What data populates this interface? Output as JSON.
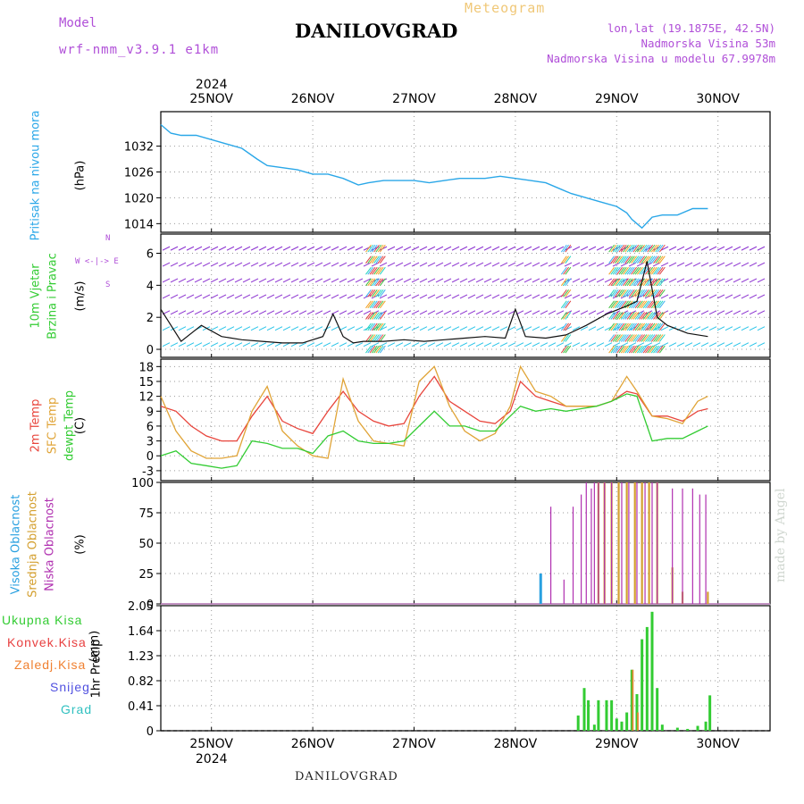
{
  "header": {
    "model_label": "Model",
    "model_run": "wrf-nmm_v3.9.1 e1km",
    "meteogram_label": "Meteogram",
    "station": "DANILOVGRAD",
    "lonlat": "lon,lat (19.1875E, 42.5N)",
    "altitude": "Nadmorska Visina 53m",
    "model_altitude": "Nadmorska Visina u modelu 67.9978m"
  },
  "footer": {
    "station": "DANILOVGRAD",
    "credit": "made by Angel"
  },
  "axis": {
    "year": "2024",
    "dates": [
      "25NOV",
      "26NOV",
      "27NOV",
      "28NOV",
      "29NOV",
      "30NOV"
    ]
  },
  "colors": {
    "pressure": "#2aa7e8",
    "temp2m": "#e8453c",
    "sfc": "#e0a437",
    "dewpt": "#33cc33",
    "high_cloud": "#29a0e0",
    "mid_cloud": "#d4a030",
    "low_cloud": "#b030b0",
    "total_precip": "#33cc33",
    "conv_precip": "#e84040",
    "frz_precip": "#f08030",
    "snow": "#5050e0",
    "hail": "#30c0c0",
    "wind_speed": "#111111",
    "wind_labels": "#b04fd8"
  },
  "panels": {
    "pressure": {
      "title": "Pritisak na nivou mora",
      "unit": "(hPa)"
    },
    "wind": {
      "title1": "10m Vjetar",
      "title2": "Brzina i Pravac",
      "unit": "(m/s)",
      "compass": "W <-|-> E",
      "compass_n": "N",
      "compass_s": "S"
    },
    "temp": {
      "t1": "2m Temp",
      "t2": "SFC Temp",
      "t3": "dewpt Temp",
      "unit": "(C)"
    },
    "cloud": {
      "t1": "Visoka Oblacnost",
      "t2": "Srednja Oblacnost",
      "t3": "Niska Oblacnost",
      "unit": "(%)"
    },
    "precip": {
      "title": "1hr Precip",
      "unit": "(mm)",
      "legend": [
        "Ukupna Kisa",
        "Konvek.Kisa",
        "Zaledj.Kisa",
        "Snijeg",
        "Grad"
      ]
    }
  },
  "chart_data": [
    {
      "type": "line",
      "name": "pressure",
      "x_days": [
        0,
        0.1,
        0.2,
        0.35,
        0.5,
        0.65,
        0.8,
        0.95,
        1.05,
        1.2,
        1.35,
        1.5,
        1.65,
        1.8,
        1.95,
        2.05,
        2.2,
        2.35,
        2.5,
        2.65,
        2.8,
        2.95,
        3.05,
        3.2,
        3.35,
        3.5,
        3.65,
        3.8,
        3.95,
        4.05,
        4.2,
        4.35,
        4.5,
        4.6,
        4.65,
        4.75,
        4.85,
        4.95,
        5.1,
        5.25,
        5.4
      ],
      "values": [
        1037,
        1035,
        1034.5,
        1034.5,
        1033.5,
        1032.5,
        1031.5,
        1029,
        1027.5,
        1027,
        1026.5,
        1025.5,
        1025.5,
        1024.5,
        1023,
        1023.5,
        1024,
        1024,
        1024,
        1023.5,
        1024,
        1024.5,
        1024.5,
        1024.5,
        1025,
        1024.5,
        1024,
        1023.5,
        1022,
        1021,
        1020,
        1019,
        1018,
        1016.5,
        1015,
        1013,
        1015.5,
        1016,
        1016,
        1017.5,
        1017.5
      ],
      "ylim": [
        1012,
        1040
      ],
      "yticks": [
        1014,
        1020,
        1026,
        1032
      ]
    },
    {
      "type": "line",
      "name": "wind_speed",
      "x_days": [
        0,
        0.2,
        0.4,
        0.6,
        0.8,
        1.0,
        1.2,
        1.4,
        1.6,
        1.7,
        1.8,
        1.9,
        2.0,
        2.2,
        2.4,
        2.6,
        2.8,
        3.0,
        3.2,
        3.4,
        3.5,
        3.6,
        3.8,
        4.0,
        4.2,
        4.4,
        4.6,
        4.7,
        4.8,
        4.9,
        5.0,
        5.2,
        5.4
      ],
      "values": [
        2.5,
        0.5,
        1.5,
        0.8,
        0.6,
        0.5,
        0.4,
        0.4,
        0.8,
        2.2,
        0.8,
        0.4,
        0.5,
        0.5,
        0.6,
        0.5,
        0.6,
        0.7,
        0.8,
        0.7,
        2.5,
        0.8,
        0.7,
        0.9,
        1.5,
        2.2,
        2.7,
        3.0,
        5.5,
        2.0,
        1.5,
        1.0,
        0.8
      ],
      "ylim": [
        -0.5,
        7.2
      ],
      "yticks": [
        0,
        2,
        4,
        6
      ]
    },
    {
      "type": "line",
      "name": "temperature",
      "x_days": [
        0,
        0.15,
        0.3,
        0.45,
        0.6,
        0.75,
        0.9,
        1.05,
        1.2,
        1.35,
        1.5,
        1.65,
        1.8,
        1.95,
        2.1,
        2.25,
        2.4,
        2.55,
        2.7,
        2.85,
        3.0,
        3.15,
        3.3,
        3.45,
        3.55,
        3.7,
        3.85,
        4.0,
        4.15,
        4.3,
        4.45,
        4.6,
        4.7,
        4.85,
        5.0,
        5.15,
        5.3,
        5.4
      ],
      "series": [
        {
          "name": "2m Temp",
          "values": [
            10,
            9,
            6,
            4,
            3,
            3,
            8,
            12,
            7,
            5.5,
            4.5,
            9,
            13,
            9,
            7,
            6,
            6.5,
            12,
            16,
            11,
            9,
            7,
            6.5,
            9,
            15,
            12,
            11,
            10,
            10,
            10,
            11,
            13,
            12.5,
            8,
            8,
            7,
            9,
            9.5
          ]
        },
        {
          "name": "SFC Temp",
          "values": [
            12,
            5,
            1,
            -0.5,
            -0.5,
            0,
            9,
            14,
            5,
            2,
            0,
            -0.5,
            15.5,
            7,
            3,
            2.5,
            2,
            15,
            18,
            10,
            5,
            3,
            4.5,
            10,
            18,
            13,
            12,
            10,
            10,
            10,
            11,
            16,
            13,
            8,
            7.5,
            6.5,
            11,
            12
          ]
        },
        {
          "name": "dewpt Temp",
          "values": [
            0,
            1,
            -1.5,
            -2,
            -2.5,
            -2,
            3,
            2.5,
            1.5,
            1.5,
            0.5,
            4,
            5,
            3,
            2.5,
            2.5,
            3,
            6,
            9,
            6,
            6,
            5,
            5,
            8,
            10,
            9,
            9.5,
            9,
            9.5,
            10,
            11,
            12.5,
            12,
            3,
            3.5,
            3.5,
            5,
            6
          ]
        }
      ],
      "ylim": [
        -5,
        19.5
      ],
      "yticks": [
        -3,
        0,
        3,
        6,
        9,
        12,
        15,
        18
      ]
    },
    {
      "type": "bar",
      "name": "cloud_cover",
      "ylim": [
        0,
        100
      ],
      "yticks": [
        0,
        25,
        50,
        75,
        100
      ],
      "series": [
        {
          "name": "Visoka Oblacnost",
          "x_days": [
            3.75
          ],
          "values": [
            25
          ]
        },
        {
          "name": "Srednja Oblacnost",
          "x_days": [
            4.32,
            4.38,
            4.45,
            4.52,
            4.6,
            4.68,
            4.75,
            4.82,
            4.9,
            5.05,
            5.15,
            5.4
          ],
          "values": [
            100,
            100,
            100,
            100,
            100,
            100,
            100,
            100,
            100,
            30,
            10,
            10
          ]
        },
        {
          "name": "Niska Oblacnost",
          "x_days": [
            3.85,
            3.98,
            4.07,
            4.15,
            4.2,
            4.25,
            4.28,
            4.32,
            4.38,
            4.45,
            4.55,
            4.62,
            4.7,
            4.78,
            4.85,
            4.9,
            5.05,
            5.15,
            5.25,
            5.32,
            5.38
          ],
          "values": [
            80,
            20,
            80,
            90,
            100,
            95,
            100,
            100,
            100,
            100,
            100,
            100,
            100,
            100,
            100,
            100,
            95,
            95,
            95,
            90,
            90
          ]
        }
      ]
    },
    {
      "type": "bar",
      "name": "precip",
      "ylim": [
        0,
        2.05
      ],
      "yticks": [
        0,
        0.41,
        0.82,
        1.23,
        1.64,
        2.05
      ],
      "x_days": [
        4.12,
        4.18,
        4.22,
        4.28,
        4.32,
        4.4,
        4.45,
        4.5,
        4.55,
        4.6,
        4.65,
        4.7,
        4.75,
        4.8,
        4.85,
        4.9,
        4.95,
        5.1,
        5.2,
        5.3,
        5.38,
        5.42
      ],
      "series": [
        {
          "name": "Ukupna Kisa",
          "values": [
            0.25,
            0.7,
            0.5,
            0.1,
            0.5,
            0.5,
            0.5,
            0.2,
            0.15,
            0.3,
            1.0,
            0.6,
            1.5,
            1.7,
            1.95,
            0.7,
            0.1,
            0.05,
            0.03,
            0.08,
            0.15,
            0.58
          ]
        },
        {
          "name": "Zaledj.Kisa",
          "values": [
            0,
            0,
            0,
            0,
            0,
            0,
            0,
            0,
            0,
            0,
            1.0,
            0.3,
            0,
            0,
            0,
            0,
            0,
            0,
            0,
            0,
            0,
            0
          ]
        }
      ]
    }
  ]
}
